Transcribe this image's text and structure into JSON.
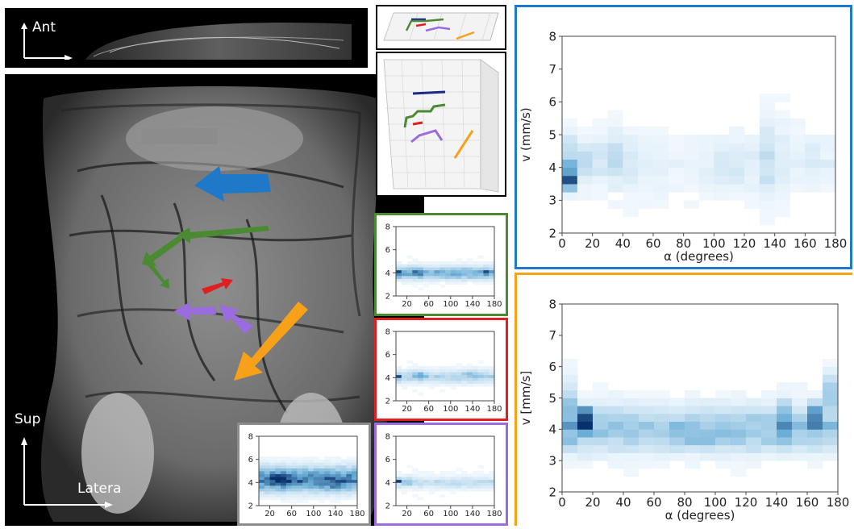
{
  "orientation": {
    "top_label": "Ant",
    "sup_label": "Sup",
    "lateral_label": "Latera"
  },
  "colors": {
    "blue": "#1f78c8",
    "green": "#4a8a32",
    "red": "#e02020",
    "purple": "#9b6be0",
    "orange": "#f7a11a",
    "gray": "#8c8c8c",
    "navy": "#1a2a8a",
    "heat_dark": "#08306b",
    "heat_light": "#f7fbff"
  },
  "chart_data": [
    {
      "id": "blue",
      "type": "heatmap",
      "xlabel": "α (degrees)",
      "ylabel": "v (mm/s)",
      "xlim": [
        0,
        180
      ],
      "ylim": [
        2,
        8
      ],
      "xticks": [
        0,
        20,
        40,
        60,
        80,
        100,
        120,
        140,
        160,
        180
      ],
      "yticks": [
        2,
        3,
        4,
        5,
        6,
        7,
        8
      ],
      "grid": false,
      "spot_scale": 0.25,
      "spots": [
        {
          "x": 3,
          "y": 3.7,
          "sx": 3,
          "sy": 0.25,
          "a": 0.75
        },
        {
          "x": 3,
          "y": 4.2,
          "sx": 3,
          "sy": 0.5,
          "a": 0.25
        },
        {
          "x": 15,
          "y": 4.2,
          "sx": 5,
          "sy": 0.4,
          "a": 0.2
        },
        {
          "x": 35,
          "y": 4.2,
          "sx": 8,
          "sy": 0.5,
          "a": 0.18
        },
        {
          "x": 60,
          "y": 4.0,
          "sx": 10,
          "sy": 0.6,
          "a": 0.07
        },
        {
          "x": 110,
          "y": 4.1,
          "sx": 15,
          "sy": 0.5,
          "a": 0.1
        },
        {
          "x": 138,
          "y": 4.3,
          "sx": 5,
          "sy": 0.9,
          "a": 0.16
        },
        {
          "x": 165,
          "y": 4.2,
          "sx": 10,
          "sy": 0.5,
          "a": 0.08
        }
      ]
    },
    {
      "id": "orange",
      "type": "heatmap",
      "xlabel": "α (degrees)",
      "ylabel": "v [mm/s]",
      "xlim": [
        0,
        180
      ],
      "ylim": [
        2,
        8
      ],
      "xticks": [
        0,
        20,
        40,
        60,
        80,
        100,
        120,
        140,
        160,
        180
      ],
      "yticks": [
        2,
        3,
        4,
        5,
        6,
        7,
        8
      ],
      "grid": false,
      "band_y": 4.0,
      "band_sy": 0.45,
      "band_a": 0.32,
      "spots": [
        {
          "x": 15,
          "y": 4.5,
          "sx": 3,
          "sy": 0.15,
          "a": 0.85
        },
        {
          "x": 15,
          "y": 4.1,
          "sx": 3,
          "sy": 0.12,
          "a": 0.95
        },
        {
          "x": 3,
          "y": 4.6,
          "sx": 3,
          "sy": 0.6,
          "a": 0.3
        },
        {
          "x": 145,
          "y": 4.3,
          "sx": 4,
          "sy": 0.4,
          "a": 0.35
        },
        {
          "x": 165,
          "y": 4.4,
          "sx": 4,
          "sy": 0.3,
          "a": 0.4
        },
        {
          "x": 176,
          "y": 5.2,
          "sx": 3,
          "sy": 0.4,
          "a": 0.25
        },
        {
          "x": 85,
          "y": 3.7,
          "sx": 10,
          "sy": 0.2,
          "a": 0.15
        }
      ]
    },
    {
      "id": "green",
      "type": "heatmap",
      "xlim": [
        0,
        180
      ],
      "ylim": [
        2,
        8
      ],
      "xticks": [
        20,
        60,
        100,
        140,
        180
      ],
      "yticks": [
        2,
        4,
        6,
        8
      ],
      "grid": false,
      "band_y": 4.0,
      "band_sy": 0.35,
      "band_a": 0.45,
      "spots": [
        {
          "x": 8,
          "y": 4.0,
          "sx": 4,
          "sy": 0.15,
          "a": 0.6
        },
        {
          "x": 40,
          "y": 4.0,
          "sx": 6,
          "sy": 0.2,
          "a": 0.4
        },
        {
          "x": 165,
          "y": 4.0,
          "sx": 4,
          "sy": 0.12,
          "a": 0.55
        }
      ]
    },
    {
      "id": "red",
      "type": "heatmap",
      "xlim": [
        0,
        180
      ],
      "ylim": [
        2,
        8
      ],
      "xticks": [
        20,
        60,
        100,
        140,
        180
      ],
      "yticks": [
        2,
        4,
        6,
        8
      ],
      "grid": false,
      "band_y": 4.1,
      "band_sy": 0.35,
      "band_a": 0.22,
      "spots": [
        {
          "x": 6,
          "y": 4.1,
          "sx": 3,
          "sy": 0.15,
          "a": 0.55
        },
        {
          "x": 45,
          "y": 4.2,
          "sx": 8,
          "sy": 0.2,
          "a": 0.35
        },
        {
          "x": 140,
          "y": 4.3,
          "sx": 10,
          "sy": 0.25,
          "a": 0.2
        }
      ]
    },
    {
      "id": "purple",
      "type": "heatmap",
      "xlim": [
        0,
        180
      ],
      "ylim": [
        2,
        8
      ],
      "xticks": [
        20,
        60,
        100,
        140,
        180
      ],
      "yticks": [
        2,
        4,
        6,
        8
      ],
      "grid": false,
      "band_y": 4.0,
      "band_sy": 0.3,
      "band_a": 0.18,
      "spots": [
        {
          "x": 6,
          "y": 4.2,
          "sx": 3,
          "sy": 0.1,
          "a": 0.85
        },
        {
          "x": 20,
          "y": 4.1,
          "sx": 6,
          "sy": 0.2,
          "a": 0.25
        }
      ]
    },
    {
      "id": "gray",
      "type": "heatmap",
      "xlim": [
        0,
        180
      ],
      "ylim": [
        2,
        8
      ],
      "xticks": [
        20,
        60,
        100,
        140,
        180
      ],
      "yticks": [
        2,
        4,
        6,
        8
      ],
      "grid": false,
      "band_y": 4.3,
      "band_sy": 0.7,
      "band_a": 0.6,
      "spots": [
        {
          "x": 45,
          "y": 4.2,
          "sx": 20,
          "sy": 0.4,
          "a": 0.45
        },
        {
          "x": 140,
          "y": 4.0,
          "sx": 15,
          "sy": 0.4,
          "a": 0.3
        }
      ]
    }
  ]
}
